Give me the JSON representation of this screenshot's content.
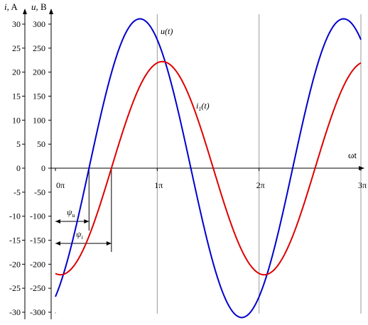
{
  "chart_data": {
    "type": "line",
    "title": "",
    "x_axis": {
      "label": "ωt",
      "range_pi": [
        0,
        3
      ],
      "ticks": [
        {
          "value_pi": 0,
          "label": "0π"
        },
        {
          "value_pi": 1,
          "label": "1π"
        },
        {
          "value_pi": 2,
          "label": "2π"
        },
        {
          "value_pi": 3,
          "label": "3π"
        }
      ]
    },
    "y_axis_current": {
      "label_var": "i",
      "label_unit": ", A",
      "range": [
        -30,
        30
      ],
      "ticks": [
        30,
        25,
        20,
        15,
        10,
        5,
        0,
        -5,
        -10,
        -15,
        -20,
        -25,
        -30
      ]
    },
    "y_axis_voltage": {
      "label_var": "u",
      "label_unit": ", B",
      "range": [
        -300,
        300
      ],
      "ticks": [
        300,
        250,
        200,
        150,
        100,
        50,
        0,
        -50,
        -100,
        -150,
        -200,
        -250,
        -300
      ]
    },
    "grid": true,
    "series": [
      {
        "name": "u(t)",
        "color": "#0000cc",
        "amplitude": 311,
        "phase_pi": -0.33,
        "axis": "voltage"
      },
      {
        "name_base": "i",
        "name_sub": "1",
        "name_tail": "(t)",
        "color": "#dd0000",
        "amplitude": 222,
        "phase_pi": -0.55,
        "axis": "voltage"
      }
    ],
    "annotations": {
      "psi_u": {
        "base": "ψ",
        "sub": "u",
        "value_pi": 0.33
      },
      "psi_i": {
        "base": "ψ",
        "sub": "i",
        "value_pi": 0.55
      }
    }
  }
}
